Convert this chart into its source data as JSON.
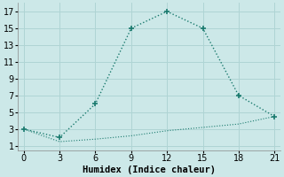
{
  "xlabel": "Humidex (Indice chaleur)",
  "line1_x": [
    0,
    3,
    6,
    9,
    12,
    15,
    18,
    21
  ],
  "line1_y": [
    3,
    2,
    6,
    15,
    17,
    15,
    7,
    4.5
  ],
  "line2_x": [
    0,
    3,
    6,
    9,
    12,
    15,
    18,
    21
  ],
  "line2_y": [
    3,
    1.5,
    1.8,
    2.2,
    2.8,
    3.2,
    3.6,
    4.5
  ],
  "line_color": "#1a7a6e",
  "bg_color": "#cce8e8",
  "grid_color": "#afd4d4",
  "xlim": [
    -0.5,
    21.5
  ],
  "ylim": [
    0.5,
    18
  ],
  "xticks": [
    0,
    3,
    6,
    9,
    12,
    15,
    18,
    21
  ],
  "yticks": [
    1,
    3,
    5,
    7,
    9,
    11,
    13,
    15,
    17
  ],
  "xlabel_fontsize": 7.5,
  "tick_fontsize": 7
}
